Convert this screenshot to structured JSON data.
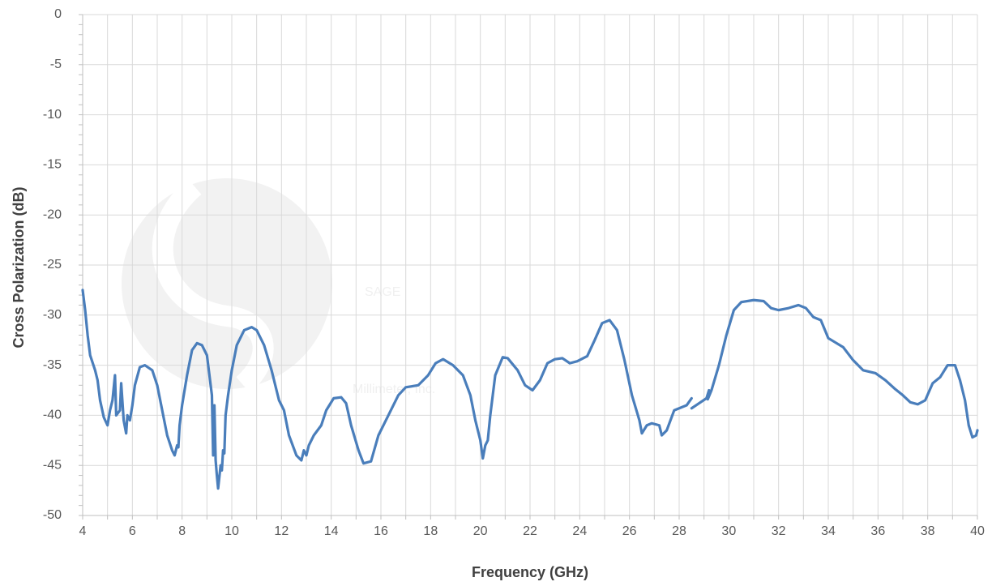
{
  "chart_data": {
    "type": "line",
    "x_label": "Frequency (GHz)",
    "y_label": "Cross Polarization (dB)",
    "watermark": {
      "title": "SAGE",
      "subtitle": "Millimeter, Inc."
    },
    "xlim": [
      4,
      40
    ],
    "ylim": [
      -50,
      0
    ],
    "xticks": [
      4,
      6,
      8,
      10,
      12,
      14,
      16,
      18,
      20,
      22,
      24,
      26,
      28,
      30,
      32,
      34,
      36,
      38,
      40
    ],
    "yticks": [
      0,
      -5,
      -10,
      -15,
      -20,
      -25,
      -30,
      -35,
      -40,
      -45,
      -50
    ],
    "xgrid_step": 1,
    "yminor_step": 1,
    "grid": true,
    "series": [
      {
        "name": "Cross Polarization",
        "color": "#4a7ebb",
        "x": [
          4.0,
          4.1,
          4.2,
          4.3,
          4.5,
          4.6,
          4.7,
          4.85,
          5.0,
          5.1,
          5.2,
          5.3,
          5.35,
          5.5,
          5.55,
          5.65,
          5.75,
          5.8,
          5.9,
          6.0,
          6.1,
          6.3,
          6.5,
          6.8,
          7.0,
          7.2,
          7.4,
          7.6,
          7.7,
          7.8,
          7.85,
          7.9,
          8.0,
          8.2,
          8.4,
          8.6,
          8.8,
          9.0,
          9.1,
          9.2,
          9.25,
          9.3,
          9.35,
          9.4,
          9.45,
          9.55,
          9.6,
          9.65,
          9.7,
          9.75,
          9.85,
          10.0,
          10.2,
          10.5,
          10.8,
          11.0,
          11.3,
          11.6,
          11.9,
          12.1,
          12.3,
          12.6,
          12.8,
          12.9,
          13.0,
          13.1,
          13.3,
          13.6,
          13.8,
          14.1,
          14.4,
          14.6,
          14.8,
          15.1,
          15.3,
          15.6,
          15.9,
          16.3,
          16.7,
          17.0,
          17.5,
          17.9,
          18.2,
          18.5,
          18.9,
          19.3,
          19.6,
          19.8,
          20.0,
          20.1,
          20.2,
          20.3,
          20.4,
          20.6,
          20.9,
          21.1,
          21.5,
          21.8,
          22.1,
          22.4,
          22.7,
          23.0,
          23.3,
          23.6,
          23.9,
          24.3,
          24.6,
          24.9,
          25.2,
          25.5,
          25.8,
          26.1,
          26.4,
          26.5,
          26.7,
          26.9,
          27.2,
          27.3,
          27.5,
          27.8,
          28.0,
          28.3,
          28.5,
          28.5,
          28.5,
          28.8,
          29.1,
          29.2,
          29.2,
          29.15,
          29.3,
          29.6,
          29.9,
          30.2,
          30.5,
          31.0,
          31.4,
          31.7,
          32.0,
          32.4,
          32.8,
          33.1,
          33.4,
          33.7,
          34.0,
          34.2,
          34.6,
          35.0,
          35.4,
          35.9,
          36.3,
          36.7,
          37.0,
          37.3,
          37.6,
          37.9,
          38.2,
          38.5,
          38.8,
          39.1,
          39.3,
          39.5,
          39.65,
          39.8,
          39.95,
          40.0
        ],
        "values": [
          -27.5,
          -29.5,
          -32,
          -34,
          -35.5,
          -36.5,
          -38.5,
          -40.2,
          -41,
          -39.5,
          -38.5,
          -36,
          -40,
          -39.5,
          -36.8,
          -40.5,
          -41.8,
          -40,
          -40.5,
          -39,
          -37,
          -35.2,
          -35,
          -35.5,
          -37,
          -39.5,
          -42,
          -43.5,
          -44,
          -43,
          -43.2,
          -41,
          -39,
          -36,
          -33.5,
          -32.8,
          -33,
          -34,
          -36,
          -38,
          -44,
          -39,
          -44.5,
          -46,
          -47.3,
          -45,
          -45.5,
          -43.5,
          -43.8,
          -40,
          -38,
          -35.5,
          -33,
          -31.5,
          -31.2,
          -31.5,
          -33,
          -35.5,
          -38.5,
          -39.5,
          -42,
          -44,
          -44.5,
          -43.5,
          -44,
          -43,
          -42,
          -41,
          -39.5,
          -38.3,
          -38.2,
          -38.8,
          -41,
          -43.5,
          -44.8,
          -44.6,
          -42,
          -40,
          -38,
          -37.2,
          -37,
          -36,
          -34.8,
          -34.4,
          -35,
          -36,
          -38,
          -40.5,
          -42.5,
          -44.3,
          -43,
          -42.5,
          -40,
          -36,
          -34.2,
          -34.3,
          -35.5,
          -37,
          -37.5,
          -36.5,
          -34.8,
          -34.4,
          -34.3,
          -34.8,
          -34.6,
          -34.1,
          -32.5,
          -30.8,
          -30.5,
          -31.5,
          -34.5,
          -38,
          -40.5,
          -41.8,
          -41,
          -40.8,
          -41,
          -42,
          -41.5,
          -39.5,
          -39.3,
          -39,
          -38.3,
          null,
          -39.3,
          -38.8,
          -38.3,
          -37.5,
          null,
          -38.4,
          -37.5,
          -35,
          -32,
          -29.5,
          -28.7,
          -28.5,
          -28.6,
          -29.3,
          -29.5,
          -29.3,
          -29.0,
          -29.3,
          -30.2,
          -30.5,
          -32.3,
          -32.6,
          -33.2,
          -34.5,
          -35.5,
          -35.8,
          -36.5,
          -37.4,
          -38,
          -38.7,
          -38.9,
          -38.5,
          -36.8,
          -36.2,
          -35,
          -35,
          -36.5,
          -38.5,
          -41,
          -42.2,
          -42,
          -41.5
        ]
      }
    ]
  }
}
